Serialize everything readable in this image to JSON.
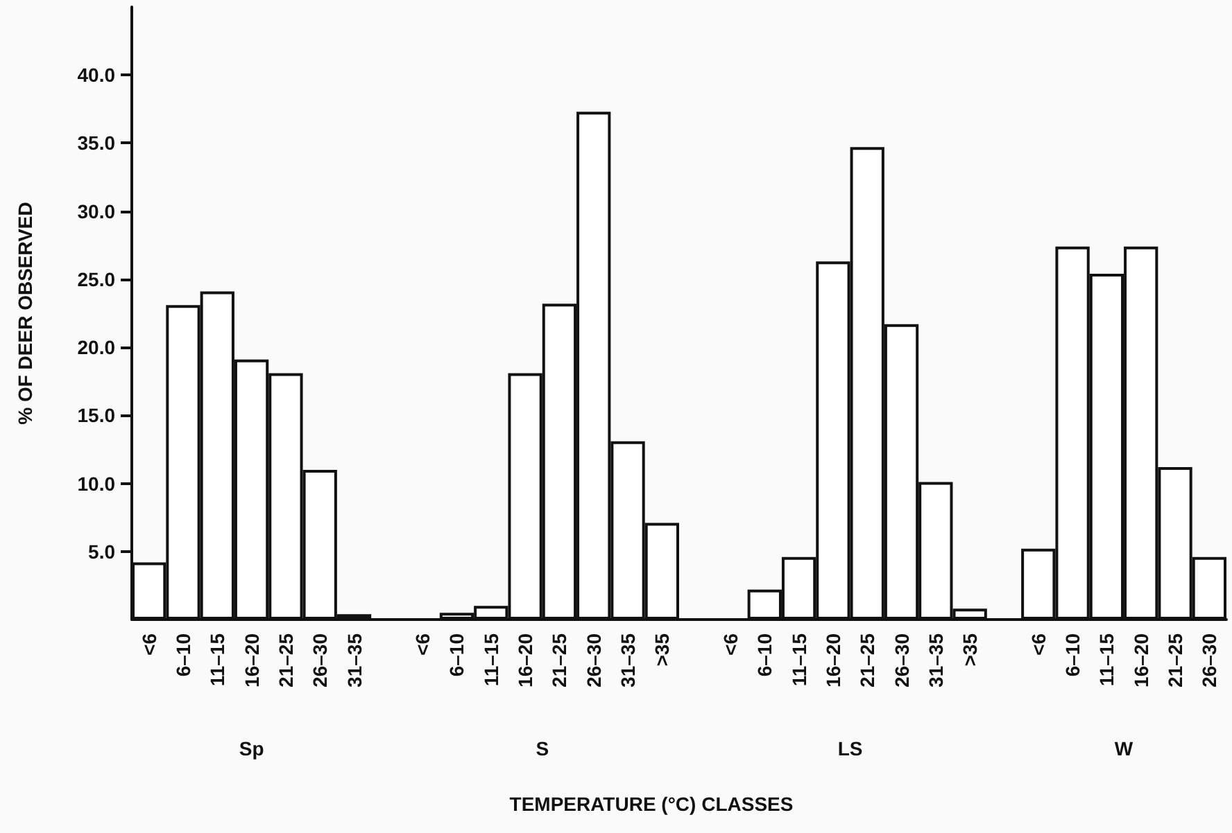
{
  "chart_data": {
    "type": "bar",
    "ylabel": "% OF DEER OBSERVED",
    "annotations": [
      "Sp",
      "S",
      "LS",
      "W",
      "TEMPERATURE (°C) CLASSES"
    ],
    "categories": [
      "<6",
      "6–10",
      "11–15",
      "16–20",
      "21–25",
      "26–30",
      "31–35",
      null,
      "<6",
      "6–10",
      "11–15",
      "16–20",
      "21–25",
      "26–30",
      "31–35",
      ">35",
      null,
      "<6",
      "6–10",
      "11–15",
      "16–20",
      "21–25",
      "26–30",
      "31–35",
      ">35",
      null,
      "<6",
      "6–10",
      "11–15",
      "16–20",
      "21–25",
      "26–30"
    ],
    "values": [
      4.2,
      23.1,
      24.1,
      19.1,
      18.1,
      11.0,
      0.4,
      null,
      null,
      0.5,
      1.0,
      18.1,
      23.2,
      37.3,
      13.1,
      7.1,
      null,
      null,
      2.2,
      4.6,
      26.3,
      34.7,
      21.7,
      10.1,
      0.8,
      null,
      5.2,
      27.4,
      25.4,
      27.4,
      11.2,
      4.6
    ],
    "color": "#ffffff",
    "ylim": [
      0,
      45
    ],
    "yticks": [
      {
        "value": 5,
        "label": "5.0"
      },
      {
        "value": 10,
        "label": "10.0"
      },
      {
        "value": 15,
        "label": "15.0"
      },
      {
        "value": 20,
        "label": "20.0"
      },
      {
        "value": 25,
        "label": "25.0"
      },
      {
        "value": 30,
        "label": "30.0"
      },
      {
        "value": 35,
        "label": "35.0"
      },
      {
        "value": 40,
        "label": "40.0"
      }
    ],
    "tick_labels": true
  }
}
